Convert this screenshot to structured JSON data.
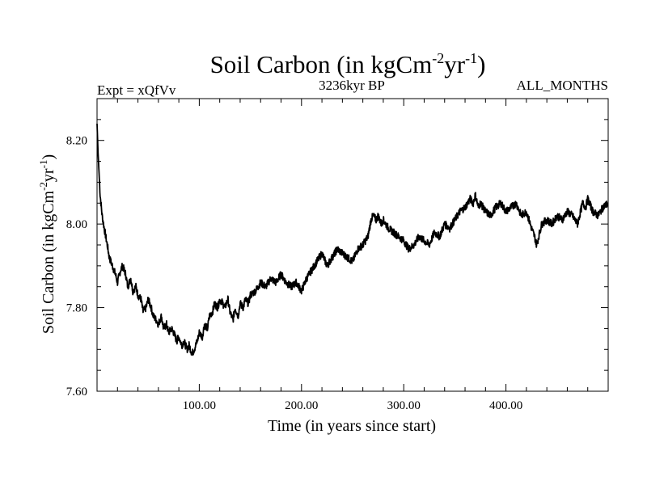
{
  "chart_data": {
    "type": "line",
    "title": {
      "main": "Soil Carbon (in kgCm",
      "sup1": "-2",
      "mid": "yr",
      "sup2": "-1",
      "end": ")"
    },
    "subtitle_left": "Expt = xQfVv",
    "subtitle_center": "3236kyr BP",
    "subtitle_right": "ALL_MONTHS",
    "xlabel": "Time (in years since start)",
    "ylabel": {
      "main": "Soil Carbon (in kgCm",
      "sup1": "-2",
      "mid": "yr",
      "sup2": "-1",
      "end": ")"
    },
    "xlim": [
      0,
      500
    ],
    "ylim": [
      7.6,
      8.3
    ],
    "x_ticks": [
      100,
      200,
      300,
      400
    ],
    "x_tick_labels": [
      "100.00",
      "200.00",
      "300.00",
      "400.00"
    ],
    "y_ticks": [
      7.6,
      7.8,
      8.0,
      8.2
    ],
    "y_tick_labels": [
      "7.60",
      "7.80",
      "8.00",
      "8.20"
    ],
    "x_minor_step": 20,
    "y_minor_step": 0.05,
    "series": [
      {
        "name": "Soil Carbon",
        "x": [
          0,
          1,
          2,
          3,
          5,
          7,
          10,
          12,
          15,
          18,
          20,
          23,
          25,
          28,
          30,
          33,
          35,
          38,
          40,
          43,
          45,
          48,
          50,
          53,
          55,
          58,
          60,
          63,
          65,
          68,
          70,
          73,
          75,
          78,
          80,
          83,
          85,
          88,
          90,
          93,
          95,
          98,
          100,
          103,
          105,
          108,
          110,
          113,
          115,
          118,
          120,
          123,
          125,
          128,
          130,
          133,
          135,
          138,
          140,
          143,
          145,
          148,
          150,
          155,
          160,
          165,
          170,
          175,
          180,
          185,
          190,
          195,
          200,
          205,
          210,
          215,
          220,
          225,
          230,
          235,
          240,
          245,
          250,
          255,
          260,
          265,
          268,
          270,
          273,
          275,
          278,
          280,
          285,
          290,
          295,
          300,
          305,
          310,
          315,
          320,
          325,
          330,
          335,
          340,
          345,
          350,
          355,
          360,
          365,
          368,
          370,
          373,
          375,
          380,
          385,
          390,
          395,
          400,
          405,
          410,
          415,
          420,
          425,
          428,
          430,
          433,
          435,
          440,
          445,
          450,
          455,
          460,
          465,
          470,
          475,
          478,
          480,
          485,
          490,
          495,
          500
        ],
        "values": [
          8.24,
          8.17,
          8.12,
          8.07,
          8.02,
          7.99,
          7.95,
          7.92,
          7.9,
          7.88,
          7.86,
          7.89,
          7.9,
          7.88,
          7.85,
          7.87,
          7.84,
          7.85,
          7.83,
          7.82,
          7.79,
          7.8,
          7.82,
          7.8,
          7.78,
          7.77,
          7.76,
          7.78,
          7.75,
          7.76,
          7.74,
          7.75,
          7.74,
          7.72,
          7.73,
          7.71,
          7.72,
          7.7,
          7.71,
          7.69,
          7.7,
          7.72,
          7.74,
          7.73,
          7.76,
          7.75,
          7.78,
          7.79,
          7.81,
          7.8,
          7.82,
          7.81,
          7.8,
          7.82,
          7.79,
          7.77,
          7.8,
          7.78,
          7.81,
          7.8,
          7.82,
          7.81,
          7.83,
          7.84,
          7.86,
          7.85,
          7.87,
          7.86,
          7.88,
          7.86,
          7.85,
          7.86,
          7.84,
          7.87,
          7.89,
          7.91,
          7.93,
          7.9,
          7.92,
          7.94,
          7.93,
          7.92,
          7.91,
          7.94,
          7.95,
          7.97,
          8.01,
          8.02,
          8.01,
          8.02,
          8.0,
          8.01,
          7.99,
          7.98,
          7.97,
          7.96,
          7.94,
          7.95,
          7.97,
          7.96,
          7.95,
          7.98,
          7.97,
          8.0,
          7.99,
          8.01,
          8.03,
          8.04,
          8.06,
          8.05,
          8.07,
          8.04,
          8.05,
          8.03,
          8.02,
          8.04,
          8.05,
          8.03,
          8.04,
          8.05,
          8.02,
          8.03,
          7.99,
          7.97,
          7.95,
          7.98,
          8.0,
          8.01,
          8.0,
          8.02,
          8.01,
          8.03,
          8.02,
          8.0,
          8.05,
          8.04,
          8.06,
          8.03,
          8.02,
          8.04,
          8.05
        ]
      }
    ]
  }
}
